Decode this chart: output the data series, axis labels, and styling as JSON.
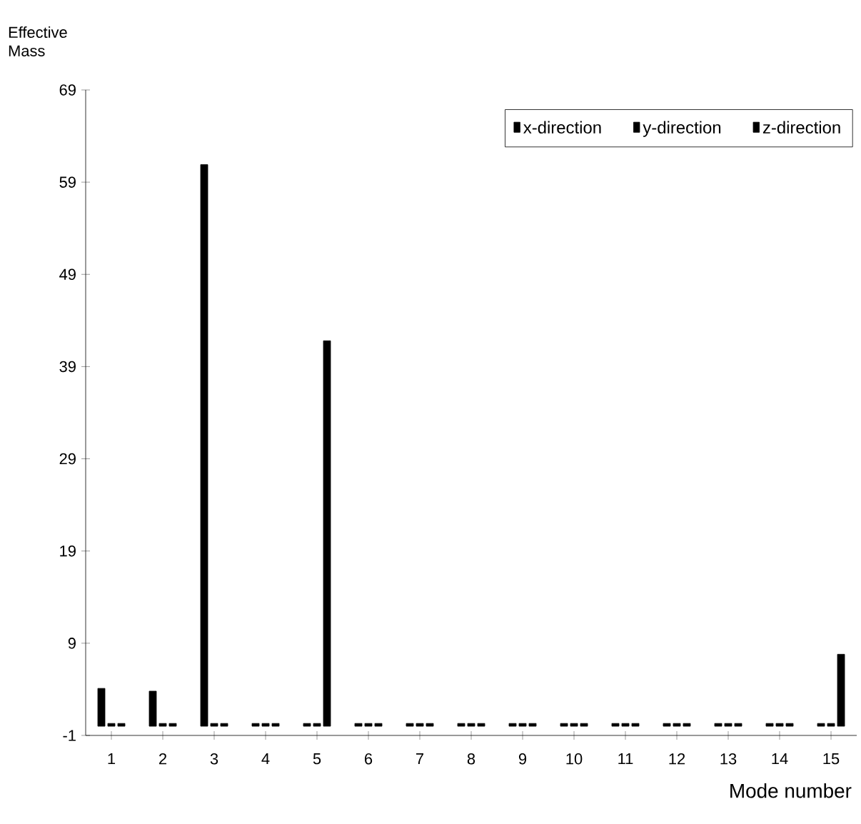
{
  "chart_data": {
    "type": "bar",
    "xlabel": "Mode number",
    "ylabel": "Effective Mass",
    "categories": [
      "1",
      "2",
      "3",
      "4",
      "5",
      "6",
      "7",
      "8",
      "9",
      "10",
      "11",
      "12",
      "13",
      "14",
      "15"
    ],
    "series": [
      {
        "name": "x-direction",
        "color": "#000000",
        "values": [
          4.1,
          3.8,
          60.9,
          0.3,
          0.3,
          0.3,
          0.3,
          0.3,
          0.3,
          0.3,
          0.3,
          0.3,
          0.3,
          0.3,
          0.3
        ]
      },
      {
        "name": "y-direction",
        "color": "#000000",
        "values": [
          0.3,
          0.3,
          0.3,
          0.3,
          0.3,
          0.3,
          0.3,
          0.3,
          0.3,
          0.3,
          0.3,
          0.3,
          0.3,
          0.3,
          0.3
        ]
      },
      {
        "name": "z-direction",
        "color": "#000000",
        "values": [
          0.3,
          0.3,
          0.3,
          0.3,
          41.8,
          0.3,
          0.3,
          0.3,
          0.3,
          0.3,
          0.3,
          0.3,
          0.3,
          0.3,
          7.8
        ]
      }
    ],
    "ylim": [
      -1,
      69
    ],
    "yticks": [
      -1,
      9,
      19,
      29,
      39,
      49,
      59,
      69
    ],
    "grid": false,
    "legend": "top right"
  }
}
